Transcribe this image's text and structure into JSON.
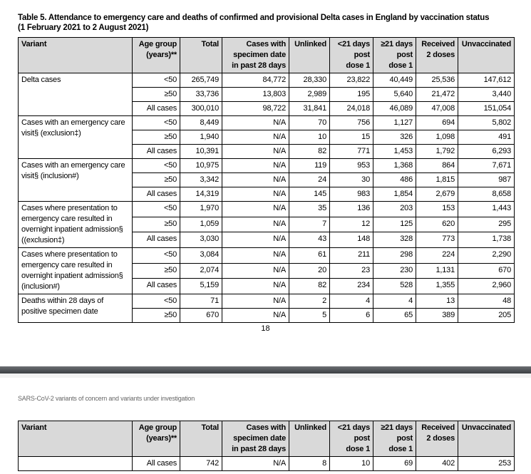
{
  "title_line1": "Table 5. Attendance to emergency care and deaths of confirmed and provisional Delta cases in England by vaccination status",
  "title_line2": "(1 February 2021 to 2 August 2021)",
  "headers": {
    "variant": "Variant",
    "age_group": [
      "Age group",
      "(years)**"
    ],
    "total": "Total",
    "cases28": [
      "Cases with",
      "specimen date",
      "in past 28 days"
    ],
    "unlinked": "Unlinked",
    "lt21": [
      "<21 days",
      "post",
      "dose 1"
    ],
    "ge21": [
      "≥21 days",
      "post",
      "dose 1"
    ],
    "received2": [
      "Received",
      "2 doses"
    ],
    "unvaccinated": "Unvaccinated"
  },
  "groups": [
    {
      "variant": "Delta cases",
      "rows": [
        [
          "<50",
          "265,749",
          "84,772",
          "28,330",
          "23,822",
          "40,449",
          "25,536",
          "147,612"
        ],
        [
          "≥50",
          "33,736",
          "13,803",
          "2,989",
          "195",
          "5,640",
          "21,472",
          "3,440"
        ],
        [
          "All cases",
          "300,010",
          "98,722",
          "31,841",
          "24,018",
          "46,089",
          "47,008",
          "151,054"
        ]
      ]
    },
    {
      "variant": "Cases with an emergency care visit§ (exclusion‡)",
      "rows": [
        [
          "<50",
          "8,449",
          "N/A",
          "70",
          "756",
          "1,127",
          "694",
          "5,802"
        ],
        [
          "≥50",
          "1,940",
          "N/A",
          "10",
          "15",
          "326",
          "1,098",
          "491"
        ],
        [
          "All cases",
          "10,391",
          "N/A",
          "82",
          "771",
          "1,453",
          "1,792",
          "6,293"
        ]
      ]
    },
    {
      "variant": "Cases with an emergency care visit§ (inclusion#)",
      "rows": [
        [
          "<50",
          "10,975",
          "N/A",
          "119",
          "953",
          "1,368",
          "864",
          "7,671"
        ],
        [
          "≥50",
          "3,342",
          "N/A",
          "24",
          "30",
          "486",
          "1,815",
          "987"
        ],
        [
          "All cases",
          "14,319",
          "N/A",
          "145",
          "983",
          "1,854",
          "2,679",
          "8,658"
        ]
      ]
    },
    {
      "variant": "Cases where presentation to emergency care resulted in overnight inpatient admission§ ((exclusion‡)",
      "rows": [
        [
          "<50",
          "1,970",
          "N/A",
          "35",
          "136",
          "203",
          "153",
          "1,443"
        ],
        [
          "≥50",
          "1,059",
          "N/A",
          "7",
          "12",
          "125",
          "620",
          "295"
        ],
        [
          "All cases",
          "3,030",
          "N/A",
          "43",
          "148",
          "328",
          "773",
          "1,738"
        ]
      ]
    },
    {
      "variant": "Cases where presentation to emergency care resulted in overnight inpatient admission§ (inclusion#)",
      "rows": [
        [
          "<50",
          "3,084",
          "N/A",
          "61",
          "211",
          "298",
          "224",
          "2,290"
        ],
        [
          "≥50",
          "2,074",
          "N/A",
          "20",
          "23",
          "230",
          "1,131",
          "670"
        ],
        [
          "All cases",
          "5,159",
          "N/A",
          "82",
          "234",
          "528",
          "1,355",
          "2,960"
        ]
      ]
    },
    {
      "variant": "Deaths within 28 days of positive specimen date",
      "rows": [
        [
          "<50",
          "71",
          "N/A",
          "2",
          "4",
          "4",
          "13",
          "48"
        ],
        [
          "≥50",
          "670",
          "N/A",
          "5",
          "6",
          "65",
          "389",
          "205"
        ]
      ]
    }
  ],
  "page_number": "18",
  "next_page": {
    "running_header": "SARS-CoV-2 variants of concern and variants under investigation",
    "groups": [
      {
        "variant": "",
        "rows": [
          [
            "All cases",
            "742",
            "N/A",
            "8",
            "10",
            "69",
            "402",
            "253"
          ]
        ]
      }
    ]
  }
}
